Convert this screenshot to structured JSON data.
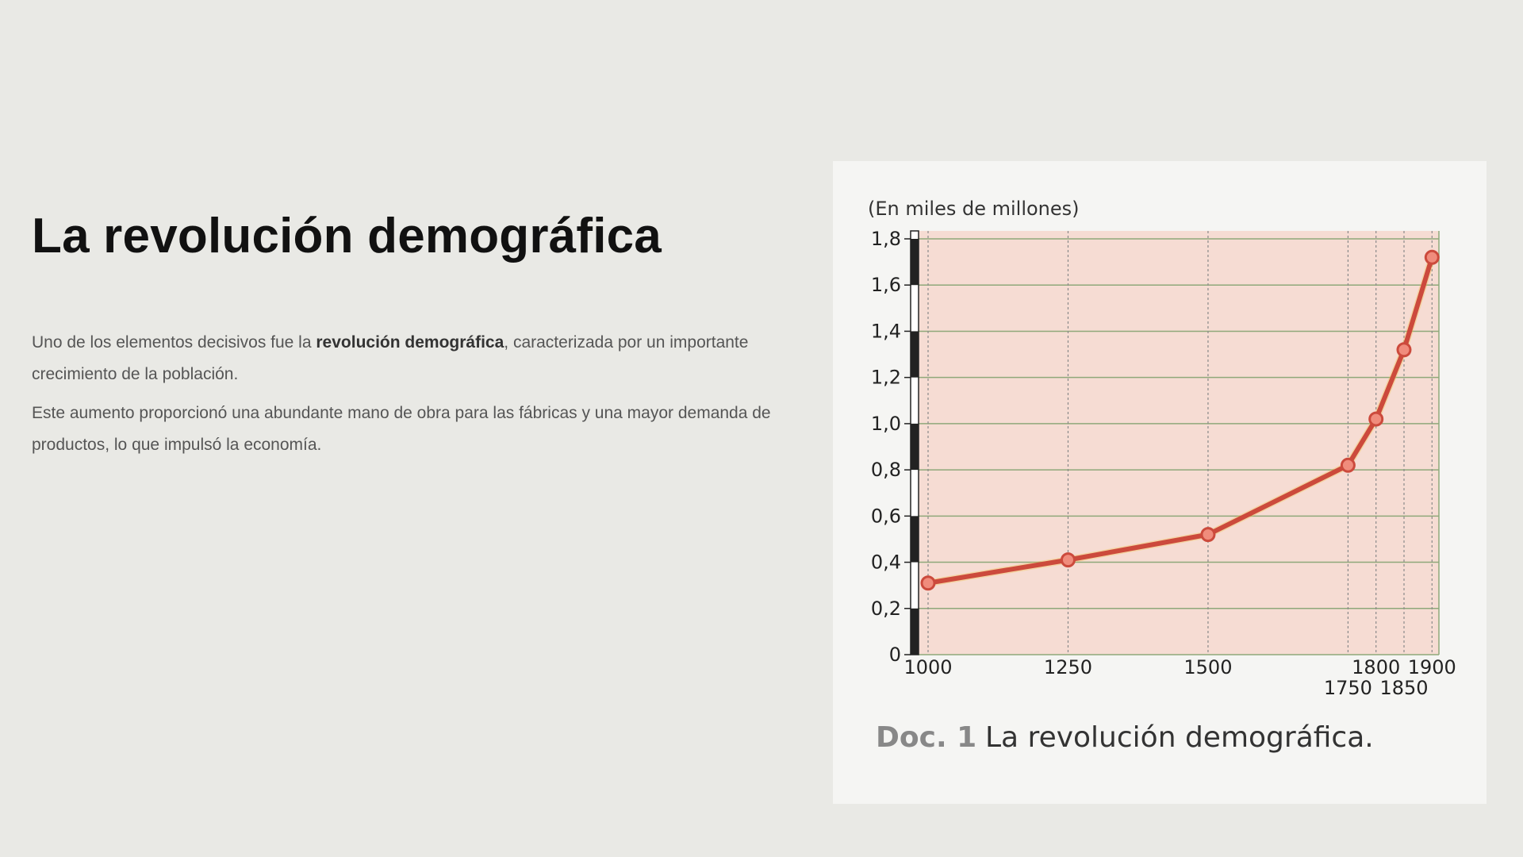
{
  "slide": {
    "title": "La revolución demográfica",
    "paragraph1": {
      "before": "Uno de los elementos decisivos fue la ",
      "bold": "revolución demográfica",
      "after": ", caracterizada por un importante crecimiento de la población."
    },
    "paragraph2": "Este aumento proporcionó una abundante mano de obra para las fábricas y una mayor demanda de productos, lo que impulsó la economía."
  },
  "figure": {
    "caption_doc": "Doc. 1",
    "caption_text": "La revolución demográfica."
  },
  "colors": {
    "line": "#cc4a3c",
    "marker_fill": "#f08c7c",
    "plot_bg": "#f6dcd3",
    "grid": "#8fa87a"
  },
  "chart_data": {
    "type": "line",
    "unit_label": "(En miles de millones)",
    "x": [
      1000,
      1250,
      1500,
      1750,
      1800,
      1850,
      1900
    ],
    "y": [
      0.31,
      0.41,
      0.52,
      0.82,
      1.02,
      1.32,
      1.72
    ],
    "xticks": [
      1000,
      1250,
      1500,
      1750,
      1800,
      1850,
      1900
    ],
    "xtick_labels": [
      "1000",
      "1250",
      "1500",
      "1750",
      "1800",
      "1850",
      "1900"
    ],
    "yticks": [
      0,
      0.2,
      0.4,
      0.6,
      0.8,
      1.0,
      1.2,
      1.4,
      1.6,
      1.8
    ],
    "ytick_labels": [
      "0",
      "0,2",
      "0,4",
      "0,6",
      "0,8",
      "1,0",
      "1,2",
      "1,4",
      "1,6",
      "1,8"
    ],
    "xlim": [
      1000,
      1935
    ],
    "ylim": [
      0,
      1.8
    ],
    "grid": true,
    "legend": "none"
  }
}
